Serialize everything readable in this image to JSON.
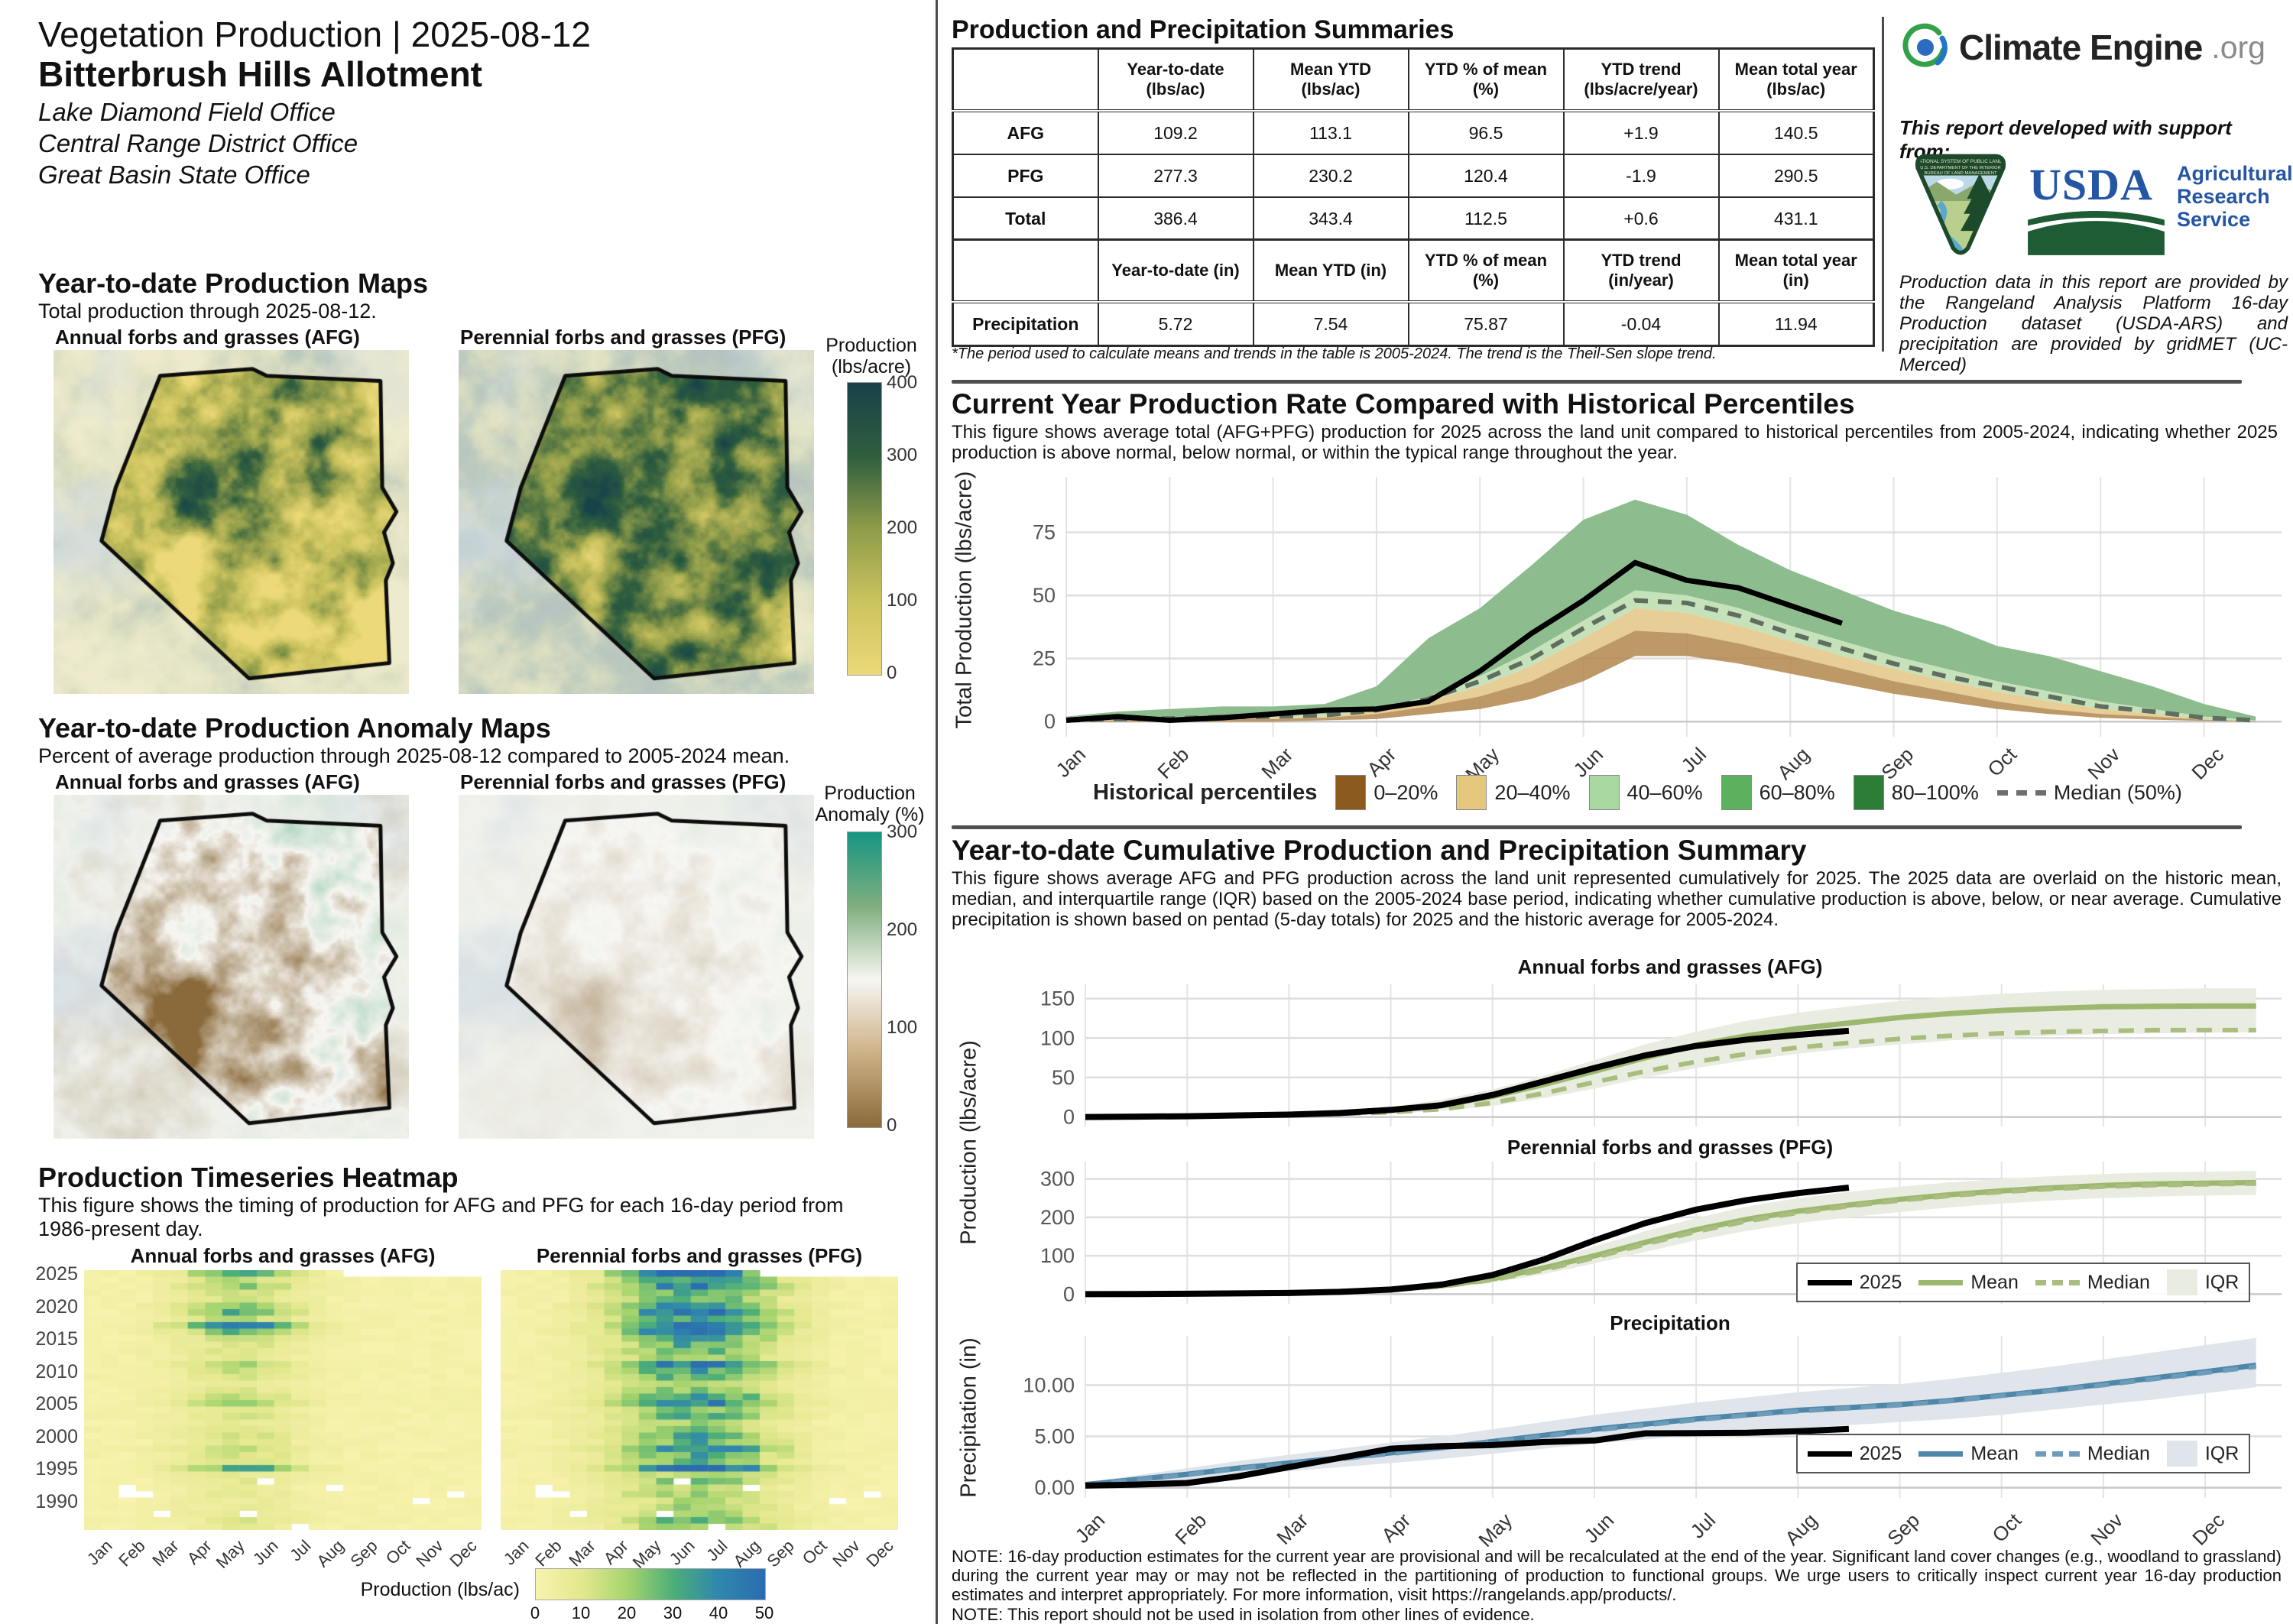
{
  "report": {
    "title": "Vegetation Production | 2025-08-12",
    "allotment": "Bitterbrush Hills Allotment",
    "offices": [
      "Lake Diamond Field Office",
      "Central Range District Office",
      "Great Basin State Office"
    ]
  },
  "months": [
    "Jan",
    "Feb",
    "Mar",
    "Apr",
    "May",
    "Jun",
    "Jul",
    "Aug",
    "Sep",
    "Oct",
    "Nov",
    "Dec"
  ],
  "sections": {
    "prod_maps": {
      "heading": "Year-to-date Production Maps",
      "subheading": "Total production through 2025-08-12.",
      "panel_afg": "Annual forbs and grasses (AFG)",
      "panel_pfg": "Perennial forbs and grasses (PFG)",
      "colorbar": {
        "title1": "Production",
        "title2": "(lbs/acre)",
        "ticks": [
          400,
          300,
          200,
          100,
          0
        ],
        "stops_top_to_bottom": [
          "#16424a",
          "#2f5e3e",
          "#8f9c49",
          "#cbc35f",
          "#ecd979"
        ]
      }
    },
    "anomaly_maps": {
      "heading": "Year-to-date Production Anomaly Maps",
      "subheading": "Percent of average production through 2025-08-12 compared to 2005-2024 mean.",
      "panel_afg": "Annual forbs and grasses (AFG)",
      "panel_pfg": "Perennial forbs and grasses (PFG)",
      "colorbar": {
        "title1": "Production",
        "title2": "Anomaly (%)",
        "ticks": [
          300,
          200,
          100,
          0
        ],
        "stops_top_to_bottom": [
          "#169582",
          "#7fae7e",
          "#f7f6f2",
          "#cdb186",
          "#8a6a3a"
        ]
      }
    },
    "heatmap": {
      "heading": "Production Timeseries Heatmap",
      "subheading": "This figure shows the timing of production for AFG and PFG for each 16-day period from 1986-present day.",
      "panel_afg": "Annual forbs and grasses (AFG)",
      "panel_pfg": "Perennial forbs and grasses (PFG)",
      "year_ticks": [
        2025,
        2020,
        2015,
        2010,
        2005,
        2000,
        1995,
        1990
      ],
      "legend_label": "Production (lbs/ac)",
      "legend_ticks": [
        0,
        10,
        20,
        30,
        40,
        50
      ]
    },
    "summaries": {
      "heading": "Production and Precipitation Summaries",
      "production_table": {
        "headers": [
          "",
          "Year-to-date (lbs/ac)",
          "Mean YTD (lbs/ac)",
          "YTD % of mean (%)",
          "YTD trend (lbs/acre/year)",
          "Mean total year (lbs/ac)"
        ],
        "rows": [
          [
            "AFG",
            "109.2",
            "113.1",
            "96.5",
            "+1.9",
            "140.5"
          ],
          [
            "PFG",
            "277.3",
            "230.2",
            "120.4",
            "-1.9",
            "290.5"
          ],
          [
            "Total",
            "386.4",
            "343.4",
            "112.5",
            "+0.6",
            "431.1"
          ]
        ]
      },
      "precip_table": {
        "headers": [
          "",
          "Year-to-date (in)",
          "Mean YTD (in)",
          "YTD % of mean (%)",
          "YTD trend (in/year)",
          "Mean total year (in)"
        ],
        "rows": [
          [
            "Precipitation",
            "5.72",
            "7.54",
            "75.87",
            "-0.04",
            "11.94"
          ]
        ]
      },
      "footnote": "*The period used to calculate means and trends in the table is 2005-2024. The trend is the Theil-Sen slope trend."
    },
    "percentiles": {
      "heading": "Current Year Production Rate Compared with Historical Percentiles",
      "description": "This figure shows average total (AFG+PFG) production for 2025 across the land unit compared to historical percentiles from 2005-2024, indicating whether 2025 production is above normal, below normal, or within the typical range throughout the year.",
      "legend_title": "Historical percentiles",
      "legend_entries": [
        {
          "label": "0–20%",
          "color": "#8a5a1e"
        },
        {
          "label": "20–40%",
          "color": "#e4c87e"
        },
        {
          "label": "40–60%",
          "color": "#a8d8a0"
        },
        {
          "label": "60–80%",
          "color": "#5cb05e"
        },
        {
          "label": "80–100%",
          "color": "#2e7d35"
        }
      ],
      "median_label": "Median (50%)"
    },
    "cumulative": {
      "heading": "Year-to-date Cumulative Production and Precipitation Summary",
      "description": "This figure shows average AFG and PFG production across the land unit represented cumulatively for 2025. The 2025 data are overlaid on the historic mean, median, and interquartile range (IQR) based on the 2005-2024 base period, indicating whether cumulative production is above, below, or near average. Cumulative precipitation is shown based on pentad (5-day totals) for 2025 and the historic average for 2005-2024.",
      "ylabel_production": "Production (lbs/acre)",
      "ylabel_precip": "Precipitation (in)",
      "legend_labels": [
        "2025",
        "Mean",
        "Median",
        "IQR"
      ]
    }
  },
  "branding": {
    "brand": "Climate Engine",
    "brand_suffix": ".org",
    "support": "This report developed with support from:",
    "usda_word": "USDA",
    "ars_lines": [
      "Agricultural",
      "Research",
      "Service"
    ],
    "blm_lines": [
      "NATIONAL SYSTEM OF PUBLIC LANDS",
      "U.S. DEPARTMENT OF THE INTERIOR",
      "BUREAU OF LAND MANAGEMENT"
    ],
    "credit": "Production data in this report are provided by the Rangeland Analysis Platform 16-day Production dataset (USDA-ARS) and precipitation are provided by gridMET (UC-Merced)"
  },
  "notes": [
    "NOTE: 16-day production estimates for the current year are provisional and will be recalculated at the end of the year. Significant land cover changes (e.g., woodland to grassland) during the current year may or may not be reflected in the partitioning of production to functional groups. We urge users to critically inspect current year 16-day production estimates and interpret appropriately. For more information, visit https://rangelands.app/products/.",
    "NOTE: This report should not be used in isolation from other lines of evidence."
  ],
  "maps": {
    "boundary": [
      [
        0.3,
        0.075
      ],
      [
        0.56,
        0.055
      ],
      [
        0.6,
        0.075
      ],
      [
        0.92,
        0.09
      ],
      [
        0.925,
        0.4
      ],
      [
        0.965,
        0.47
      ],
      [
        0.93,
        0.53
      ],
      [
        0.955,
        0.62
      ],
      [
        0.935,
        0.67
      ],
      [
        0.945,
        0.91
      ],
      [
        0.55,
        0.955
      ],
      [
        0.135,
        0.555
      ],
      [
        0.175,
        0.4
      ]
    ],
    "outside_fade": "#eef0ea",
    "water_tint": "#cdd9e4",
    "anomaly_brown": "#8a6a3a",
    "anomaly_green": "#7fbf98"
  },
  "chart_data": [
    {
      "type": "area",
      "title": "Current Year Production Rate Compared with Historical Percentiles",
      "ylabel": "Total Production (lbs/acre)",
      "yticks": [
        0,
        25,
        50,
        75
      ],
      "ylim": [
        -6,
        97
      ],
      "x_step_months": 0.5,
      "percentile_bounds": {
        "p0": [
          0,
          0,
          0,
          0,
          0,
          0.5,
          1,
          3,
          5,
          9,
          16,
          26,
          26,
          23,
          19,
          15,
          11,
          8,
          5,
          3,
          1.5,
          0.8,
          0.3,
          0
        ],
        "p20": [
          0.2,
          0.5,
          0.7,
          1,
          1,
          1.5,
          3,
          6,
          10,
          16,
          26,
          36,
          35,
          31,
          26,
          21,
          16,
          12,
          8,
          5,
          3,
          2,
          0.7,
          0.2
        ],
        "p40": [
          0.3,
          0.7,
          1,
          1.5,
          1.5,
          2,
          4,
          8,
          14,
          22,
          33,
          45,
          43,
          38,
          32,
          26,
          21,
          16,
          12,
          8,
          5,
          3,
          1,
          0.3
        ],
        "p60": [
          0.5,
          1,
          1.5,
          2,
          2.5,
          3,
          5,
          10,
          18,
          28,
          40,
          52,
          50,
          45,
          38,
          32,
          26,
          21,
          16,
          12,
          8,
          5,
          2,
          0.5
        ],
        "p100": [
          2,
          4,
          5,
          6,
          6,
          7,
          14,
          33,
          45,
          62,
          80,
          88,
          82,
          70,
          60,
          52,
          44,
          38,
          30,
          26,
          20,
          14,
          7,
          2
        ]
      },
      "median": [
        0.5,
        1,
        1.2,
        1.8,
        2,
        2.5,
        4.5,
        9,
        16,
        25,
        37,
        48,
        47,
        42,
        35,
        29,
        23,
        18,
        14,
        10,
        6,
        4,
        1.5,
        0.5
      ],
      "line_2025": [
        0.5,
        2,
        0.5,
        1.5,
        3,
        4.5,
        5,
        8,
        20,
        35,
        48,
        63,
        56,
        53,
        46,
        39
      ],
      "band_colors": {
        "p0_20": "#b3874e",
        "p20_40": "#e7cd96",
        "p40_60": "#c6e2bb",
        "p60_100": "#8dbd8e"
      },
      "median_color": "#5f6e5f",
      "line_color": "#000000"
    },
    {
      "type": "line",
      "title": "Annual forbs and grasses (AFG)",
      "yticks": [
        0,
        50,
        100,
        150
      ],
      "ytick_labels": [
        "0",
        "50",
        "100",
        "150"
      ],
      "ylim": [
        -12,
        168
      ],
      "mean": [
        0,
        0.5,
        1,
        2,
        3.5,
        5.5,
        9,
        15,
        26,
        41,
        58,
        75,
        91,
        103,
        112,
        119,
        126,
        131,
        135,
        137.5,
        139.5,
        140.2,
        140.5,
        140.5
      ],
      "median": [
        0,
        0.3,
        0.7,
        1.5,
        2.5,
        4,
        6,
        10,
        18,
        30,
        44,
        58,
        70,
        80,
        88,
        94,
        99,
        103,
        106,
        108,
        109,
        110,
        110,
        110
      ],
      "iqr_low": [
        0,
        0,
        0.5,
        1,
        1.5,
        2.5,
        4,
        8,
        14,
        24,
        36,
        50,
        62,
        72,
        80,
        87,
        92,
        97,
        100,
        103,
        105,
        106,
        107,
        107
      ],
      "iqr_high": [
        0,
        1,
        2,
        3,
        5,
        8,
        13,
        22,
        35,
        52,
        72,
        92,
        108,
        122,
        132,
        140,
        147,
        152,
        156,
        159,
        161,
        162,
        163,
        163
      ],
      "line_2025": [
        0,
        0.5,
        1,
        2,
        3,
        5,
        9,
        15,
        28,
        45,
        62,
        78,
        90,
        98,
        104,
        109.2
      ],
      "colors": {
        "mean": "#9cb86f",
        "median": "#a9bd7e",
        "iqr": "#e9ece0",
        "line": "#000000"
      }
    },
    {
      "type": "line",
      "title": "Perennial forbs and grasses (PFG)",
      "yticks": [
        0,
        100,
        200,
        300
      ],
      "ytick_labels": [
        "0",
        "100",
        "200",
        "300"
      ],
      "ylim": [
        -25,
        345
      ],
      "mean": [
        0,
        0.5,
        1,
        2,
        4,
        7,
        12,
        22,
        40,
        68,
        100,
        135,
        168,
        195,
        216,
        232,
        247,
        259,
        269,
        277,
        283,
        287,
        289,
        290.5
      ],
      "median": [
        0,
        0.5,
        1,
        2,
        3.5,
        6,
        11,
        20,
        37,
        63,
        95,
        130,
        163,
        190,
        212,
        229,
        244,
        256,
        266,
        274,
        280,
        284,
        286,
        288
      ],
      "iqr_low": [
        0,
        0,
        0.5,
        1.5,
        3,
        5,
        9,
        16,
        30,
        52,
        80,
        110,
        140,
        165,
        185,
        200,
        214,
        226,
        236,
        244,
        250,
        254,
        257,
        258
      ],
      "iqr_high": [
        0,
        1,
        2,
        3.5,
        6,
        10,
        17,
        30,
        52,
        86,
        124,
        164,
        198,
        228,
        250,
        266,
        280,
        291,
        300,
        307,
        313,
        317,
        319,
        321
      ],
      "line_2025": [
        0,
        0.5,
        1,
        2,
        3,
        6,
        12,
        25,
        50,
        90,
        140,
        185,
        220,
        245,
        263,
        277.3
      ],
      "colors": {
        "mean": "#9cb86f",
        "median": "#a9bd7e",
        "iqr": "#e9ece0",
        "line": "#000000"
      }
    },
    {
      "type": "line",
      "title": "Precipitation",
      "yticks": [
        0,
        5,
        10
      ],
      "ytick_labels": [
        "0.00",
        "5.00",
        "10.00"
      ],
      "ylim": [
        -1,
        14.8
      ],
      "mean": [
        0.3,
        0.8,
        1.3,
        1.9,
        2.4,
        2.9,
        3.4,
        3.9,
        4.5,
        5.1,
        5.7,
        6.2,
        6.7,
        7.1,
        7.54,
        7.8,
        8.1,
        8.5,
        9.0,
        9.5,
        10.1,
        10.7,
        11.3,
        11.94
      ],
      "median": [
        0.25,
        0.75,
        1.25,
        1.85,
        2.35,
        2.8,
        3.3,
        3.85,
        4.45,
        5.0,
        5.6,
        6.1,
        6.6,
        7.05,
        7.45,
        7.75,
        8.05,
        8.45,
        8.95,
        9.45,
        10.0,
        10.6,
        11.2,
        11.8
      ],
      "iqr_low": [
        0.1,
        0.4,
        0.8,
        1.2,
        1.6,
        2.0,
        2.4,
        2.8,
        3.3,
        3.8,
        4.3,
        4.7,
        5.1,
        5.5,
        5.8,
        6.1,
        6.4,
        6.7,
        7.1,
        7.6,
        8.1,
        8.6,
        9.2,
        9.8
      ],
      "iqr_high": [
        0.5,
        1.2,
        1.9,
        2.6,
        3.2,
        3.8,
        4.4,
        5.0,
        5.7,
        6.4,
        7.1,
        7.7,
        8.3,
        8.8,
        9.3,
        9.7,
        10.1,
        10.6,
        11.2,
        11.8,
        12.5,
        13.2,
        13.9,
        14.6
      ],
      "line_2025": [
        0.2,
        0.3,
        0.45,
        1.1,
        2.0,
        2.9,
        3.8,
        4.05,
        4.15,
        4.45,
        4.6,
        5.3,
        5.32,
        5.35,
        5.5,
        5.72
      ],
      "colors": {
        "mean": "#4f87a8",
        "median": "#6c9cba",
        "iqr": "#dfe5ea",
        "line": "#000000"
      }
    },
    {
      "type": "heatmap",
      "years_range": [
        1986,
        2025
      ],
      "columns_per_year": 23,
      "value_range": [
        0,
        50
      ],
      "afg": {
        "peak_month": 4.7,
        "sigma": 1.25,
        "amplitudes": [
          6,
          8,
          7,
          6,
          5,
          6,
          5,
          7,
          8,
          30,
          10,
          12,
          15,
          10,
          12,
          8,
          6,
          10,
          8,
          20,
          15,
          8,
          6,
          10,
          12,
          15,
          8,
          10,
          10,
          12,
          25,
          50,
          15,
          25,
          20,
          10,
          12,
          20,
          15,
          25
        ]
      },
      "pfg": {
        "peak_month": 5.9,
        "sigma": 1.7,
        "amplitudes": [
          20,
          25,
          20,
          18,
          15,
          18,
          15,
          22,
          20,
          48,
          25,
          30,
          40,
          28,
          30,
          22,
          18,
          28,
          25,
          42,
          35,
          22,
          20,
          28,
          32,
          40,
          22,
          28,
          28,
          30,
          45,
          50,
          32,
          42,
          38,
          25,
          30,
          42,
          35,
          48
        ]
      },
      "colors": [
        "#f8f3ae",
        "#e3e88e",
        "#a6d46e",
        "#4cae78",
        "#2f87ae",
        "#2b6cb0"
      ],
      "color_stops": [
        0,
        10,
        20,
        30,
        40,
        50
      ]
    }
  ]
}
